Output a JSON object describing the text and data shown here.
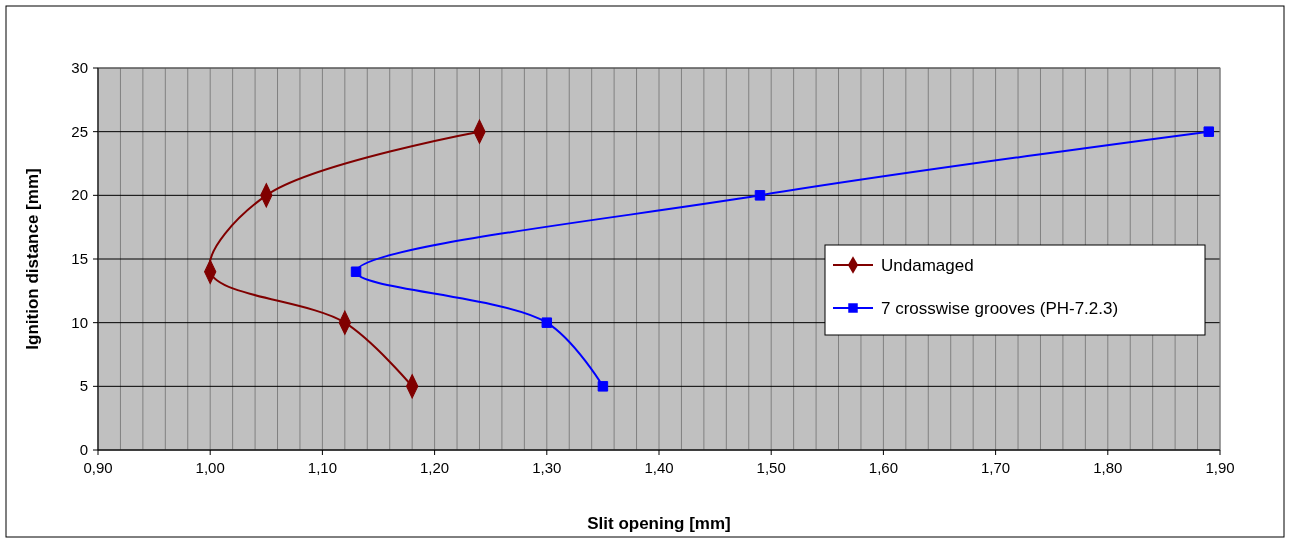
{
  "chart_data": {
    "type": "line",
    "xlabel": "Slit opening [mm]",
    "ylabel": "Ignition distance [mm]",
    "series": [
      {
        "name": "Undamaged",
        "color": "#800000",
        "marker": "diamond",
        "x": [
          1.18,
          1.12,
          1.0,
          1.05,
          1.24
        ],
        "values": [
          5,
          10,
          14,
          20,
          25
        ]
      },
      {
        "name": "7 crosswise grooves (PH-7.2.3)",
        "color": "#0000ff",
        "marker": "square",
        "x": [
          1.35,
          1.3,
          1.13,
          1.49,
          1.89
        ],
        "values": [
          5,
          10,
          14,
          20,
          25
        ]
      }
    ],
    "xlim": [
      0.9,
      1.9
    ],
    "xticks": [
      {
        "value": 0.9,
        "label": "0,90"
      },
      {
        "value": 0.92,
        "label": null
      },
      {
        "value": 0.94,
        "label": null
      },
      {
        "value": 0.96,
        "label": null
      },
      {
        "value": 0.98,
        "label": null
      },
      {
        "value": 1.0,
        "label": "1,00"
      },
      {
        "value": 1.02,
        "label": null
      },
      {
        "value": 1.04,
        "label": null
      },
      {
        "value": 1.06,
        "label": null
      },
      {
        "value": 1.08,
        "label": null
      },
      {
        "value": 1.1,
        "label": "1,10"
      },
      {
        "value": 1.12,
        "label": null
      },
      {
        "value": 1.14,
        "label": null
      },
      {
        "value": 1.16,
        "label": null
      },
      {
        "value": 1.18,
        "label": null
      },
      {
        "value": 1.2,
        "label": "1,20"
      },
      {
        "value": 1.22,
        "label": null
      },
      {
        "value": 1.24,
        "label": null
      },
      {
        "value": 1.26,
        "label": null
      },
      {
        "value": 1.28,
        "label": null
      },
      {
        "value": 1.3,
        "label": "1,30"
      },
      {
        "value": 1.32,
        "label": null
      },
      {
        "value": 1.34,
        "label": null
      },
      {
        "value": 1.36,
        "label": null
      },
      {
        "value": 1.38,
        "label": null
      },
      {
        "value": 1.4,
        "label": "1,40"
      },
      {
        "value": 1.42,
        "label": null
      },
      {
        "value": 1.44,
        "label": null
      },
      {
        "value": 1.46,
        "label": null
      },
      {
        "value": 1.48,
        "label": null
      },
      {
        "value": 1.5,
        "label": "1,50"
      },
      {
        "value": 1.52,
        "label": null
      },
      {
        "value": 1.54,
        "label": null
      },
      {
        "value": 1.56,
        "label": null
      },
      {
        "value": 1.58,
        "label": null
      },
      {
        "value": 1.6,
        "label": "1,60"
      },
      {
        "value": 1.62,
        "label": null
      },
      {
        "value": 1.64,
        "label": null
      },
      {
        "value": 1.66,
        "label": null
      },
      {
        "value": 1.68,
        "label": null
      },
      {
        "value": 1.7,
        "label": "1,70"
      },
      {
        "value": 1.72,
        "label": null
      },
      {
        "value": 1.74,
        "label": null
      },
      {
        "value": 1.76,
        "label": null
      },
      {
        "value": 1.78,
        "label": null
      },
      {
        "value": 1.8,
        "label": "1,80"
      },
      {
        "value": 1.82,
        "label": null
      },
      {
        "value": 1.84,
        "label": null
      },
      {
        "value": 1.86,
        "label": null
      },
      {
        "value": 1.88,
        "label": null
      },
      {
        "value": 1.9,
        "label": "1,90"
      }
    ],
    "ylim": [
      0,
      30
    ],
    "yticks": [
      0,
      5,
      10,
      15,
      20,
      25,
      30
    ],
    "grid": true,
    "legend": "right",
    "line_style": "solid"
  }
}
